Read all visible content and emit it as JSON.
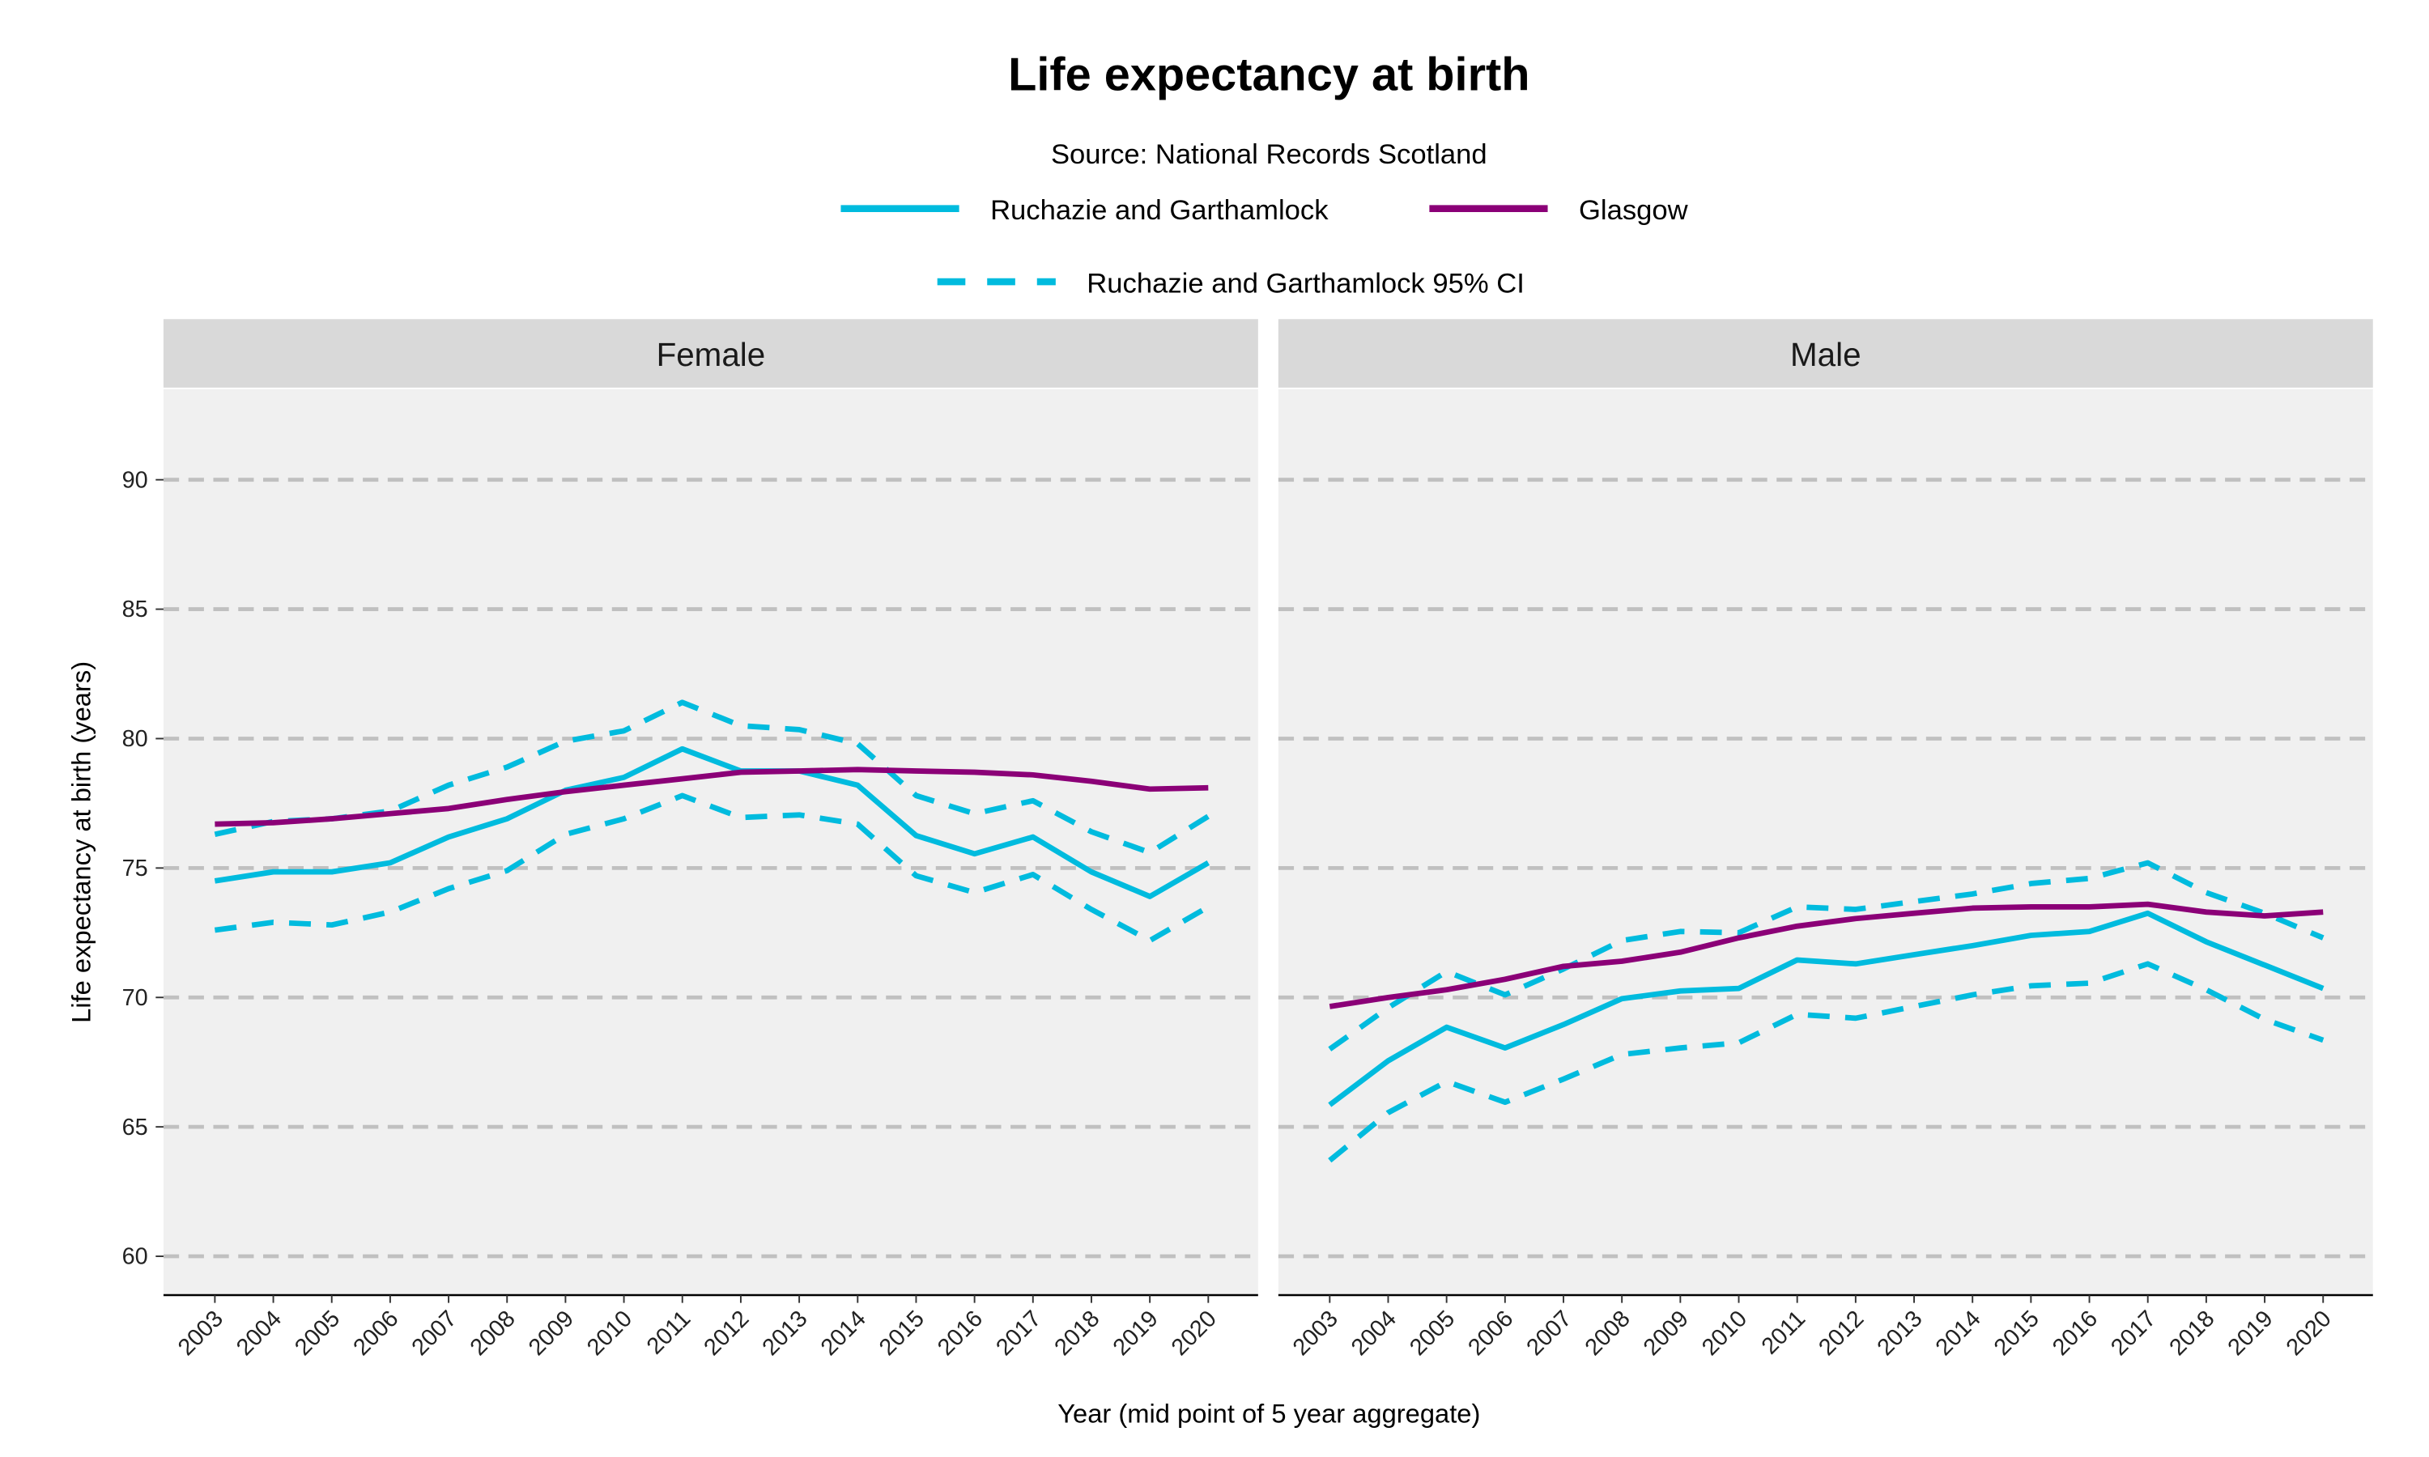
{
  "chart_data": [
    {
      "type": "line",
      "title": "Life expectancy at birth",
      "subtitle": "Source: National Records Scotland",
      "panel": "Female",
      "xlabel": "Year (mid point of 5 year aggregate)",
      "ylabel": "Life expectancy at birth (years)",
      "ylim": [
        58.5,
        93.5
      ],
      "yticks": [
        60,
        65,
        70,
        75,
        80,
        85,
        90
      ],
      "grid": "horizontal dashed",
      "legend_position": "top",
      "x": [
        2003,
        2004,
        2005,
        2006,
        2007,
        2008,
        2009,
        2010,
        2011,
        2012,
        2013,
        2014,
        2015,
        2016,
        2017,
        2018,
        2019,
        2020
      ],
      "series": [
        {
          "name": "Ruchazie and Garthamlock",
          "style": "solid",
          "color": "#00BBDE",
          "values": [
            74.5,
            74.85,
            74.85,
            75.2,
            76.2,
            76.9,
            78.0,
            78.5,
            79.6,
            78.75,
            78.75,
            78.2,
            76.25,
            75.55,
            76.2,
            74.85,
            73.9,
            75.2
          ]
        },
        {
          "name": "Glasgow",
          "style": "solid",
          "color": "#8B0077",
          "values": [
            76.7,
            76.75,
            76.9,
            77.1,
            77.3,
            77.65,
            77.95,
            78.2,
            78.45,
            78.7,
            78.75,
            78.8,
            78.75,
            78.7,
            78.6,
            78.35,
            78.05,
            78.1
          ]
        },
        {
          "name": "Ruchazie and Garthamlock 95% CI",
          "bound": "upper",
          "style": "dashed",
          "color": "#00BBDE",
          "values": [
            76.3,
            76.8,
            76.9,
            77.2,
            78.2,
            78.9,
            79.9,
            80.3,
            81.4,
            80.5,
            80.35,
            79.8,
            77.8,
            77.1,
            77.6,
            76.4,
            75.6,
            77.0
          ]
        },
        {
          "name": "Ruchazie and Garthamlock 95% CI",
          "bound": "lower",
          "style": "dashed",
          "color": "#00BBDE",
          "values": [
            72.6,
            72.9,
            72.8,
            73.3,
            74.2,
            74.9,
            76.3,
            76.9,
            77.8,
            76.95,
            77.05,
            76.7,
            74.7,
            74.05,
            74.75,
            73.4,
            72.2,
            73.5
          ]
        }
      ]
    },
    {
      "type": "line",
      "panel": "Male",
      "ylim": [
        58.5,
        93.5
      ],
      "x": [
        2003,
        2004,
        2005,
        2006,
        2007,
        2008,
        2009,
        2010,
        2011,
        2012,
        2013,
        2014,
        2015,
        2016,
        2017,
        2018,
        2019,
        2020
      ],
      "series": [
        {
          "name": "Ruchazie and Garthamlock",
          "style": "solid",
          "color": "#00BBDE",
          "values": [
            65.85,
            67.55,
            68.85,
            68.05,
            68.95,
            69.95,
            70.25,
            70.35,
            71.45,
            71.3,
            71.65,
            72.0,
            72.4,
            72.55,
            73.25,
            72.15,
            71.25,
            70.35
          ]
        },
        {
          "name": "Glasgow",
          "style": "solid",
          "color": "#8B0077",
          "values": [
            69.65,
            70.0,
            70.3,
            70.7,
            71.2,
            71.4,
            71.75,
            72.3,
            72.75,
            73.05,
            73.25,
            73.45,
            73.5,
            73.5,
            73.6,
            73.3,
            73.15,
            73.3
          ]
        },
        {
          "name": "Ruchazie and Garthamlock 95% CI",
          "bound": "upper",
          "style": "dashed",
          "color": "#00BBDE",
          "values": [
            68.0,
            69.6,
            71.0,
            70.1,
            71.1,
            72.2,
            72.55,
            72.5,
            73.5,
            73.4,
            73.7,
            74.0,
            74.4,
            74.6,
            75.2,
            74.05,
            73.25,
            72.3
          ]
        },
        {
          "name": "Ruchazie and Garthamlock 95% CI",
          "bound": "lower",
          "style": "dashed",
          "color": "#00BBDE",
          "values": [
            63.7,
            65.55,
            66.75,
            65.95,
            66.85,
            67.8,
            68.05,
            68.25,
            69.35,
            69.2,
            69.65,
            70.1,
            70.45,
            70.55,
            71.3,
            70.3,
            69.15,
            68.35
          ]
        }
      ]
    }
  ],
  "legend": {
    "items": [
      {
        "label": "Ruchazie and Garthamlock",
        "color": "#00BBDE",
        "style": "solid"
      },
      {
        "label": "Glasgow",
        "color": "#8B0077",
        "style": "solid"
      },
      {
        "label": "Ruchazie and Garthamlock 95% CI",
        "color": "#00BBDE",
        "style": "dashed"
      }
    ]
  }
}
